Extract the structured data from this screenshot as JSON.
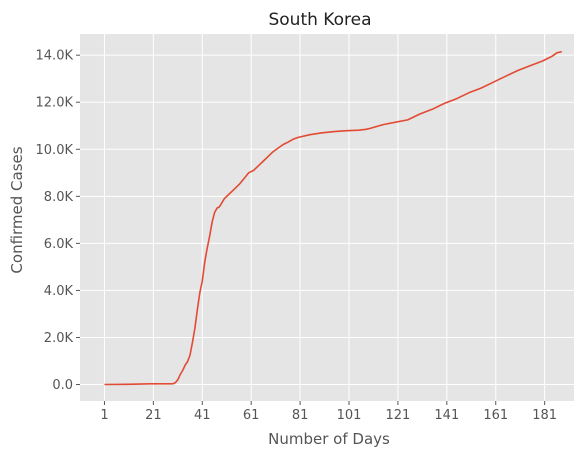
{
  "chart_data": {
    "type": "line",
    "title": "South Korea",
    "xlabel": "Number of Days",
    "ylabel": "Confirmed Cases",
    "xlim": [
      -9,
      193
    ],
    "ylim": [
      -700,
      14900
    ],
    "x_ticks": [
      1,
      21,
      41,
      61,
      81,
      101,
      121,
      141,
      161,
      181
    ],
    "x_tick_labels": [
      "1",
      "21",
      "41",
      "61",
      "81",
      "101",
      "121",
      "141",
      "161",
      "181"
    ],
    "y_ticks": [
      0,
      2000,
      4000,
      6000,
      8000,
      10000,
      12000,
      14000
    ],
    "y_tick_labels": [
      "0.0",
      "2.0K",
      "4.0K",
      "6.0K",
      "8.0K",
      "10.0K",
      "12.0K",
      "14.0K"
    ],
    "grid": true,
    "series": [
      {
        "color": "#e24a33",
        "x": [
          1,
          10,
          20,
          29,
          30,
          31,
          32,
          33,
          34,
          35,
          36,
          37,
          38,
          39,
          40,
          41,
          42,
          43,
          44,
          45,
          46,
          47,
          48,
          50,
          52,
          54,
          56,
          58,
          60,
          62,
          64,
          66,
          68,
          70,
          72,
          74,
          76,
          78,
          80,
          85,
          90,
          95,
          100,
          105,
          108,
          110,
          115,
          120,
          125,
          130,
          135,
          140,
          145,
          150,
          155,
          160,
          165,
          170,
          175,
          180,
          184,
          186,
          188
        ],
        "y": [
          0,
          10,
          30,
          30,
          80,
          200,
          430,
          600,
          830,
          980,
          1250,
          1800,
          2400,
          3200,
          3900,
          4400,
          5200,
          5800,
          6300,
          6900,
          7300,
          7500,
          7550,
          7900,
          8100,
          8300,
          8500,
          8750,
          9000,
          9100,
          9300,
          9500,
          9700,
          9900,
          10050,
          10200,
          10300,
          10420,
          10500,
          10620,
          10700,
          10750,
          10790,
          10810,
          10850,
          10900,
          11050,
          11150,
          11250,
          11500,
          11700,
          11950,
          12150,
          12400,
          12600,
          12850,
          13100,
          13350,
          13550,
          13750,
          13950,
          14100,
          14150
        ]
      }
    ]
  }
}
